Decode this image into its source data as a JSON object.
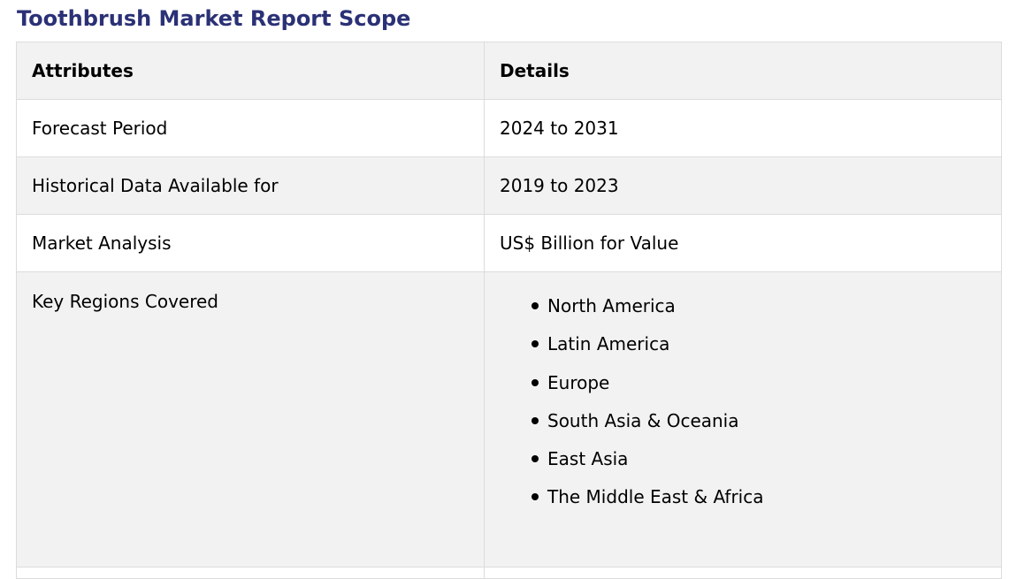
{
  "page": {
    "title": "Toothbrush Market Report Scope"
  },
  "table": {
    "headers": [
      "Attributes",
      "Details"
    ],
    "rows": [
      {
        "attribute": "Forecast Period",
        "detail": "2024 to 2031"
      },
      {
        "attribute": "Historical Data Available for",
        "detail": "2019 to 2023"
      },
      {
        "attribute": "Market Analysis",
        "detail": "US$ Billion for Value"
      }
    ],
    "regions": {
      "attribute": "Key Regions Covered",
      "items": [
        "North America",
        "Latin America",
        "Europe",
        "South Asia & Oceania",
        "East Asia",
        "The Middle East & Africa"
      ]
    }
  },
  "colors": {
    "title": "#2b3176",
    "row_shade": "#f2f2f2",
    "border": "#dcdcdc"
  }
}
